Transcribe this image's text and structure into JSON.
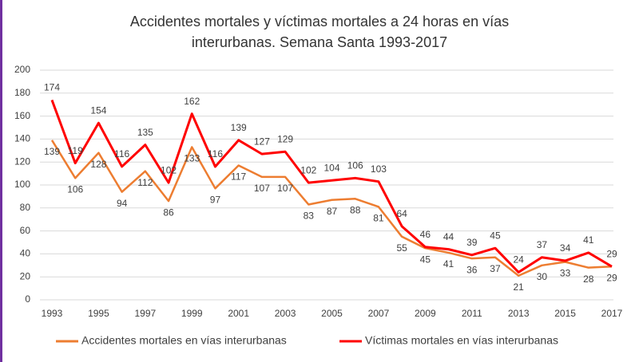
{
  "chart_data": {
    "type": "line",
    "title": "Accidentes mortales y víctimas mortales a 24 horas en vías interurbanas. Semana Santa 1993-2017",
    "categories": [
      "1993",
      null,
      "1995",
      null,
      "1997",
      null,
      "1999",
      null,
      "2001",
      null,
      "2003",
      null,
      "2005",
      null,
      "2007",
      null,
      "2009",
      null,
      "2011",
      null,
      "2013",
      null,
      "2015",
      null,
      "2017"
    ],
    "series": [
      {
        "name": "Accidentes mortales en vías interurbanas",
        "color": "#ed7d31",
        "values": [
          139,
          106,
          128,
          94,
          112,
          86,
          133,
          97,
          117,
          107,
          107,
          83,
          87,
          88,
          81,
          55,
          45,
          41,
          36,
          37,
          21,
          30,
          33,
          28,
          29
        ]
      },
      {
        "name": "Víctimas mortales en vías interurbanas",
        "color": "#ff0000",
        "values": [
          174,
          119,
          154,
          116,
          135,
          102,
          162,
          116,
          139,
          127,
          129,
          102,
          104,
          106,
          103,
          64,
          46,
          44,
          39,
          45,
          24,
          37,
          34,
          41,
          29
        ]
      }
    ],
    "ylim": [
      0,
      200
    ],
    "yticks": [
      0,
      20,
      40,
      60,
      80,
      100,
      120,
      140,
      160,
      180,
      200
    ],
    "grid": true,
    "legend": "bottom"
  }
}
